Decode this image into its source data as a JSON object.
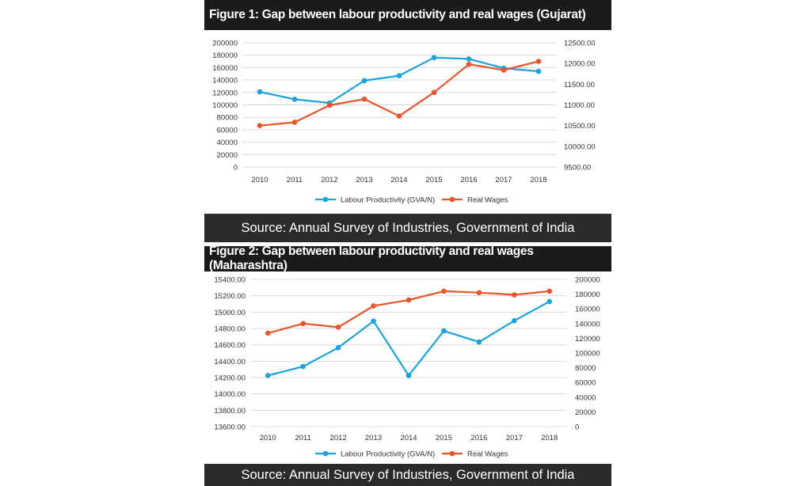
{
  "colors": {
    "productivity": "#1aa3df",
    "wages": "#e8552b",
    "grid": "#d9d9d9",
    "dark": "#1b1b1b"
  },
  "chart_data": [
    {
      "type": "line",
      "title": "Figure 1: Gap between labour productivity and real wages (Gujarat)",
      "source": "Source: Annual Survey of Industries, Government of India",
      "categories": [
        "2010",
        "2011",
        "2012",
        "2013",
        "2014",
        "2015",
        "2016",
        "2017",
        "2018"
      ],
      "left_axis": {
        "ylim": [
          0,
          200000
        ],
        "ticks": [
          "0",
          "20000",
          "40000",
          "60000",
          "80000",
          "100000",
          "120000",
          "140000",
          "160000",
          "180000",
          "200000"
        ]
      },
      "right_axis": {
        "ylim": [
          9500,
          12500
        ],
        "ticks": [
          "9500.00",
          "10000.00",
          "10500.00",
          "11000.00",
          "11500.00",
          "12000.00",
          "12500.00"
        ]
      },
      "series": [
        {
          "name": "Labour Productivity (GVA/N)",
          "axis": "left",
          "values": [
            121000,
            109000,
            103000,
            139000,
            147000,
            176000,
            174000,
            159000,
            154000
          ]
        },
        {
          "name": "Real Wages",
          "axis": "right",
          "values": [
            10500,
            10580,
            10990,
            11140,
            10730,
            11300,
            11980,
            11840,
            12050
          ]
        }
      ],
      "legend": "bottom"
    },
    {
      "type": "line",
      "title": "Figure 2: Gap between labour productivity and real wages (Maharashtra)",
      "source": "Source: Annual Survey of Industries, Government of India",
      "categories": [
        "2010",
        "2011",
        "2012",
        "2013",
        "2014",
        "2015",
        "2016",
        "2017",
        "2018"
      ],
      "left_axis": {
        "ylim": [
          13600,
          15400
        ],
        "ticks": [
          "13600.00",
          "13800.00",
          "14000.00",
          "14200.00",
          "14400.00",
          "14600.00",
          "14800.00",
          "15000.00",
          "15200.00",
          "15400.00"
        ]
      },
      "right_axis": {
        "ylim": [
          0,
          200000
        ],
        "ticks": [
          "0",
          "20000",
          "40000",
          "60000",
          "80000",
          "100000",
          "120000",
          "140000",
          "160000",
          "180000",
          "200000"
        ]
      },
      "series": [
        {
          "name": "Labour Productivity (GVA/N)",
          "axis": "left",
          "values": [
            14225,
            14335,
            14565,
            14890,
            14225,
            14770,
            14635,
            14895,
            15130
          ]
        },
        {
          "name": "Real Wages",
          "axis": "right",
          "values": [
            127000,
            140000,
            135000,
            164000,
            172000,
            184000,
            182000,
            179000,
            184000
          ]
        }
      ],
      "legend": "bottom"
    }
  ]
}
